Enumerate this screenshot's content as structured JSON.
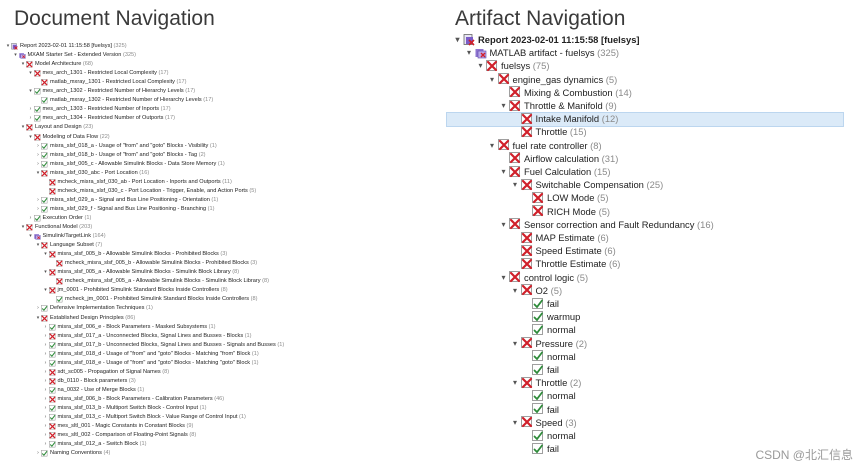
{
  "headings": {
    "left": "Document Navigation",
    "right": "Artifact Navigation"
  },
  "watermark": "CSDN @北汇信息",
  "icon_names": {
    "report": "report-icon",
    "folder": "folder-icon",
    "fail": "fail-icon",
    "pass": "pass-icon"
  },
  "colors": {
    "fail": "#d0202a",
    "pass": "#2e8b3a",
    "folder": "#7a5cc8",
    "highlight": "#dbeaf8"
  },
  "left_tree": [
    {
      "d": 0,
      "t": "▾",
      "i": "report",
      "label": "Report 2023-02-01 11:15:58 [fuelsys]",
      "count": "(325)"
    },
    {
      "d": 1,
      "t": "▾",
      "i": "folder",
      "label": "MXAM Starter Set - Extended Version",
      "count": "(325)"
    },
    {
      "d": 2,
      "t": "▾",
      "i": "fail",
      "label": "Model Architecture",
      "count": "(68)"
    },
    {
      "d": 3,
      "t": "▾",
      "i": "fail",
      "label": "mes_arch_1301 - Restricted Local Complexity",
      "count": "(17)"
    },
    {
      "d": 4,
      "t": "",
      "i": "fail",
      "label": "matlab_mxray_1301 - Restricted Local Complexity",
      "count": "(17)"
    },
    {
      "d": 3,
      "t": "▾",
      "i": "pass",
      "label": "mes_arch_1302 - Restricted Number of Hierarchy Levels",
      "count": "(17)"
    },
    {
      "d": 4,
      "t": "",
      "i": "pass",
      "label": "matlab_mxray_1302 - Restricted Number of Hierarchy Levels",
      "count": "(17)"
    },
    {
      "d": 3,
      "t": "›",
      "i": "pass",
      "label": "mes_arch_1303 - Restricted Number of Inports",
      "count": "(17)"
    },
    {
      "d": 3,
      "t": "›",
      "i": "pass",
      "label": "mes_arch_1304 - Restricted Number of Outports",
      "count": "(17)"
    },
    {
      "d": 2,
      "t": "▾",
      "i": "fail",
      "label": "Layout and Design",
      "count": "(23)"
    },
    {
      "d": 3,
      "t": "▾",
      "i": "fail",
      "label": "Modeling of Data Flow",
      "count": "(22)"
    },
    {
      "d": 4,
      "t": "›",
      "i": "pass",
      "label": "misra_slsf_018_a - Usage of \"from\" and \"goto\" Blocks - Visibility",
      "count": "(1)"
    },
    {
      "d": 4,
      "t": "›",
      "i": "pass",
      "label": "misra_slsf_018_b - Usage of \"from\" and \"goto\" Blocks - Tag",
      "count": "(2)"
    },
    {
      "d": 4,
      "t": "›",
      "i": "pass",
      "label": "misra_slsf_005_c - Allowable Simulink Blocks - Data Store Memory",
      "count": "(1)"
    },
    {
      "d": 4,
      "t": "▾",
      "i": "fail",
      "label": "misra_slsf_030_abc - Port Location",
      "count": "(16)"
    },
    {
      "d": 5,
      "t": "",
      "i": "fail",
      "label": "mcheck_misra_slsf_030_ab - Port Location - Inports and Outports",
      "count": "(11)"
    },
    {
      "d": 5,
      "t": "",
      "i": "fail",
      "label": "mcheck_misra_slsf_030_c - Port Location - Trigger, Enable, and Action Ports",
      "count": "(5)"
    },
    {
      "d": 4,
      "t": "›",
      "i": "pass",
      "label": "misra_slsf_029_a - Signal and Bus Line Positioning - Orientation",
      "count": "(1)"
    },
    {
      "d": 4,
      "t": "›",
      "i": "pass",
      "label": "misra_slsf_029_f - Signal and Bus Line Positioning - Branching",
      "count": "(1)"
    },
    {
      "d": 3,
      "t": "›",
      "i": "pass",
      "label": "Execution Order",
      "count": "(1)"
    },
    {
      "d": 2,
      "t": "▾",
      "i": "fail",
      "label": "Functional Model",
      "count": "(203)"
    },
    {
      "d": 3,
      "t": "▾",
      "i": "folder",
      "label": "Simulink/TargetLink",
      "count": "(164)"
    },
    {
      "d": 4,
      "t": "▾",
      "i": "fail",
      "label": "Language Subset",
      "count": "(7)"
    },
    {
      "d": 5,
      "t": "▾",
      "i": "fail",
      "label": "misra_slsf_005_b - Allowable Simulink Blocks - Prohibited Blocks",
      "count": "(3)"
    },
    {
      "d": 6,
      "t": "",
      "i": "fail",
      "label": "mcheck_misra_slsf_005_b - Allowable Simulink Blocks - Prohibited Blocks",
      "count": "(3)"
    },
    {
      "d": 5,
      "t": "▾",
      "i": "fail",
      "label": "misra_slsf_005_a - Allowable Simulink Blocks - Simulink Block Library",
      "count": "(8)"
    },
    {
      "d": 6,
      "t": "",
      "i": "fail",
      "label": "mcheck_misra_slsf_005_a - Allowable Simulink Blocks - Simulink Block Library",
      "count": "(8)"
    },
    {
      "d": 5,
      "t": "▾",
      "i": "fail",
      "label": "jm_0001 - Prohibited Simulink Standard Blocks Inside Controllers",
      "count": "(8)"
    },
    {
      "d": 6,
      "t": "",
      "i": "pass",
      "label": "mcheck_jm_0001 - Prohibited Simulink Standard Blocks Inside Controllers",
      "count": "(8)"
    },
    {
      "d": 4,
      "t": "›",
      "i": "pass",
      "label": "Defensive Implementation Techniques",
      "count": "(1)"
    },
    {
      "d": 4,
      "t": "▾",
      "i": "fail",
      "label": "Established Design Principles",
      "count": "(86)"
    },
    {
      "d": 5,
      "t": "›",
      "i": "pass",
      "label": "misra_slsf_006_e - Block Parameters - Masked Subsystems",
      "count": "(1)"
    },
    {
      "d": 5,
      "t": "›",
      "i": "fail",
      "label": "misra_slsf_017_a - Unconnected Blocks, Signal Lines and Busses - Blocks",
      "count": "(1)"
    },
    {
      "d": 5,
      "t": "›",
      "i": "pass",
      "label": "misra_slsf_017_b - Unconnected Blocks, Signal Lines and Busses - Signals and Busses",
      "count": "(1)"
    },
    {
      "d": 5,
      "t": "›",
      "i": "pass",
      "label": "misra_slsf_018_d - Usage of \"from\" and \"goto\" Blocks - Matching \"from\" Block",
      "count": "(1)"
    },
    {
      "d": 5,
      "t": "›",
      "i": "pass",
      "label": "misra_slsf_018_e - Usage of \"from\" and \"goto\" Blocks - Matching \"goto\" Block",
      "count": "(1)"
    },
    {
      "d": 5,
      "t": "›",
      "i": "fail",
      "label": "sdt_sc005 - Propagation of Signal Names",
      "count": "(8)"
    },
    {
      "d": 5,
      "t": "›",
      "i": "fail",
      "label": "db_0110 - Block parameters",
      "count": "(3)"
    },
    {
      "d": 5,
      "t": "›",
      "i": "pass",
      "label": "na_0032 - Use of Merge Blocks",
      "count": "(1)"
    },
    {
      "d": 5,
      "t": "›",
      "i": "fail",
      "label": "misra_slsf_006_b - Block Parameters - Calibration Parameters",
      "count": "(46)"
    },
    {
      "d": 5,
      "t": "›",
      "i": "pass",
      "label": "misra_slsf_013_b - Multiport Switch Block - Control Input",
      "count": "(1)"
    },
    {
      "d": 5,
      "t": "›",
      "i": "pass",
      "label": "misra_slsf_013_c - Multiport Switch Block - Value Range of Control Input",
      "count": "(1)"
    },
    {
      "d": 5,
      "t": "›",
      "i": "fail",
      "label": "mes_sltl_001 - Magic Constants in Constant Blocks",
      "count": "(9)"
    },
    {
      "d": 5,
      "t": "›",
      "i": "fail",
      "label": "mes_sltl_002 - Comparison of Floating-Point Signals",
      "count": "(8)"
    },
    {
      "d": 5,
      "t": "›",
      "i": "pass",
      "label": "misra_slsf_012_a - Switch Block",
      "count": "(1)"
    },
    {
      "d": 4,
      "t": "›",
      "i": "pass",
      "label": "Naming Conventions",
      "count": "(4)"
    }
  ],
  "right_tree": [
    {
      "d": 0,
      "t": "▾",
      "i": "report",
      "label": "Report 2023-02-01 11:15:58 [fuelsys]",
      "count": "",
      "bold": true
    },
    {
      "d": 1,
      "t": "▾",
      "i": "folder",
      "label": "MATLAB artifact - fuelsys",
      "count": "(325)"
    },
    {
      "d": 2,
      "t": "▾",
      "i": "fail",
      "label": "fuelsys",
      "count": "(75)"
    },
    {
      "d": 3,
      "t": "▾",
      "i": "fail",
      "label": "engine_gas dynamics",
      "count": "(5)"
    },
    {
      "d": 4,
      "t": "",
      "i": "fail",
      "label": "Mixing & Combustion",
      "count": "(14)"
    },
    {
      "d": 4,
      "t": "▾",
      "i": "fail",
      "label": "Throttle & Manifold",
      "count": "(9)"
    },
    {
      "d": 5,
      "t": "",
      "i": "fail",
      "label": "Intake Manifold",
      "count": "(12)"
    },
    {
      "d": 5,
      "t": "",
      "i": "fail",
      "label": "Throttle",
      "count": "(15)"
    },
    {
      "d": 3,
      "t": "▾",
      "i": "fail",
      "label": "fuel rate controller",
      "count": "(8)"
    },
    {
      "d": 4,
      "t": "",
      "i": "fail",
      "label": "Airflow calculation",
      "count": "(31)"
    },
    {
      "d": 4,
      "t": "▾",
      "i": "fail",
      "label": "Fuel  Calculation",
      "count": "(15)"
    },
    {
      "d": 5,
      "t": "▾",
      "i": "fail",
      "label": "Switchable Compensation",
      "count": "(25)"
    },
    {
      "d": 6,
      "t": "",
      "i": "fail",
      "label": "LOW Mode",
      "count": "(5)"
    },
    {
      "d": 6,
      "t": "",
      "i": "fail",
      "label": "RICH Mode",
      "count": "(5)"
    },
    {
      "d": 4,
      "t": "▾",
      "i": "fail",
      "label": "Sensor correction and  Fault Redundancy",
      "count": "(16)"
    },
    {
      "d": 5,
      "t": "",
      "i": "fail",
      "label": "MAP Estimate",
      "count": "(6)"
    },
    {
      "d": 5,
      "t": "",
      "i": "fail",
      "label": "Speed Estimate",
      "count": "(6)"
    },
    {
      "d": 5,
      "t": "",
      "i": "fail",
      "label": "Throttle Estimate",
      "count": "(6)"
    },
    {
      "d": 4,
      "t": "▾",
      "i": "fail",
      "label": "control logic",
      "count": "(5)"
    },
    {
      "d": 5,
      "t": "▾",
      "i": "fail",
      "label": "O2",
      "count": "(5)"
    },
    {
      "d": 6,
      "t": "",
      "i": "pass",
      "label": "fail",
      "count": ""
    },
    {
      "d": 6,
      "t": "",
      "i": "pass",
      "label": "warmup",
      "count": ""
    },
    {
      "d": 6,
      "t": "",
      "i": "pass",
      "label": "normal",
      "count": ""
    },
    {
      "d": 5,
      "t": "▾",
      "i": "fail",
      "label": "Pressure",
      "count": "(2)"
    },
    {
      "d": 6,
      "t": "",
      "i": "pass",
      "label": "normal",
      "count": ""
    },
    {
      "d": 6,
      "t": "",
      "i": "pass",
      "label": "fail",
      "count": ""
    },
    {
      "d": 5,
      "t": "▾",
      "i": "fail",
      "label": "Throttle",
      "count": "(2)"
    },
    {
      "d": 6,
      "t": "",
      "i": "pass",
      "label": "normal",
      "count": ""
    },
    {
      "d": 6,
      "t": "",
      "i": "pass",
      "label": "fail",
      "count": ""
    },
    {
      "d": 5,
      "t": "▾",
      "i": "fail",
      "label": "Speed",
      "count": "(3)"
    },
    {
      "d": 6,
      "t": "",
      "i": "pass",
      "label": "normal",
      "count": ""
    },
    {
      "d": 6,
      "t": "",
      "i": "pass",
      "label": "fail",
      "count": ""
    }
  ]
}
